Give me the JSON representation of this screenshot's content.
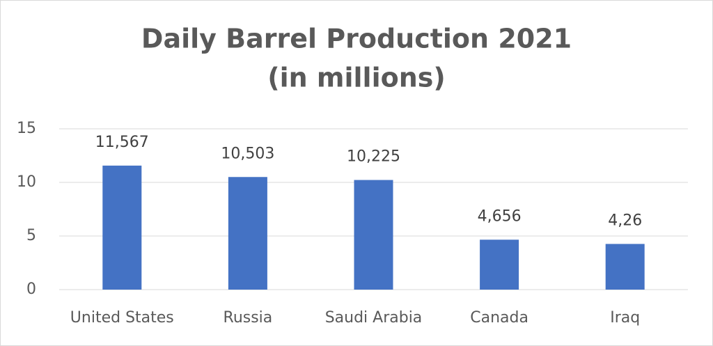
{
  "chart_data": {
    "type": "bar",
    "title": [
      "Daily Barrel Production 2021",
      "(in millions)"
    ],
    "categories": [
      "United States",
      "Russia",
      "Saudi Arabia",
      "Canada",
      "Iraq"
    ],
    "values": [
      11.567,
      10.503,
      10.225,
      4.656,
      4.26
    ],
    "value_labels": [
      "11,567",
      "10,503",
      "10,225",
      "4,656",
      "4,26"
    ],
    "color": "#4472c4",
    "ylim": [
      0,
      15
    ],
    "yticks": [
      0,
      5,
      10,
      15
    ],
    "grid": true
  }
}
